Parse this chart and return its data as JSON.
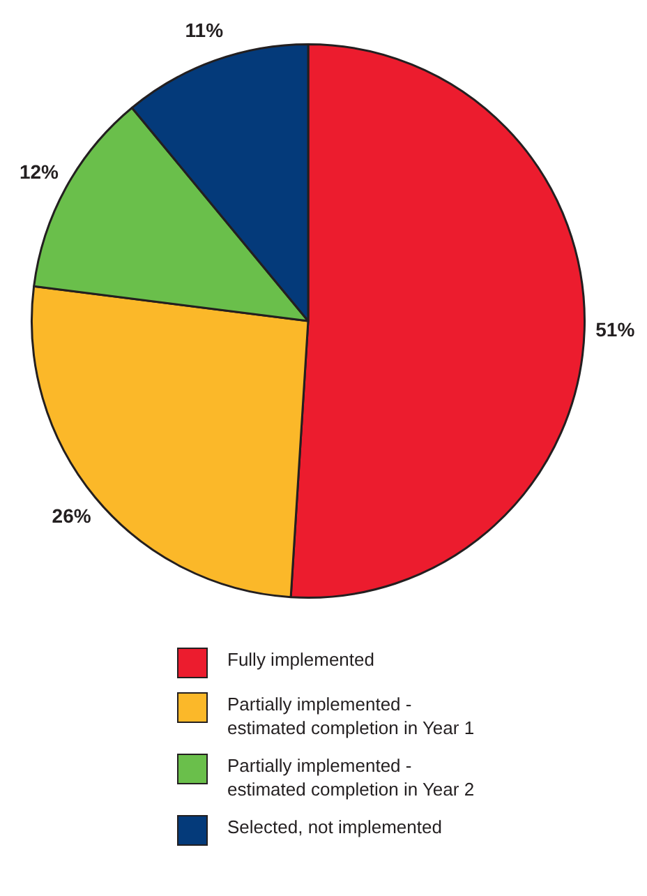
{
  "chart_data": {
    "type": "pie",
    "categories": [
      "Fully implemented",
      "Partially implemented - estimated completion in Year 1",
      "Partially implemented - estimated completion in Year 2",
      "Selected, not implemented"
    ],
    "values": [
      51,
      26,
      12,
      11
    ],
    "colors": [
      "#ec1c2e",
      "#fbb829",
      "#6abf4b",
      "#043a7a"
    ],
    "value_labels": [
      "51%",
      "26%",
      "12%",
      "11%"
    ],
    "legend": "bottom"
  }
}
